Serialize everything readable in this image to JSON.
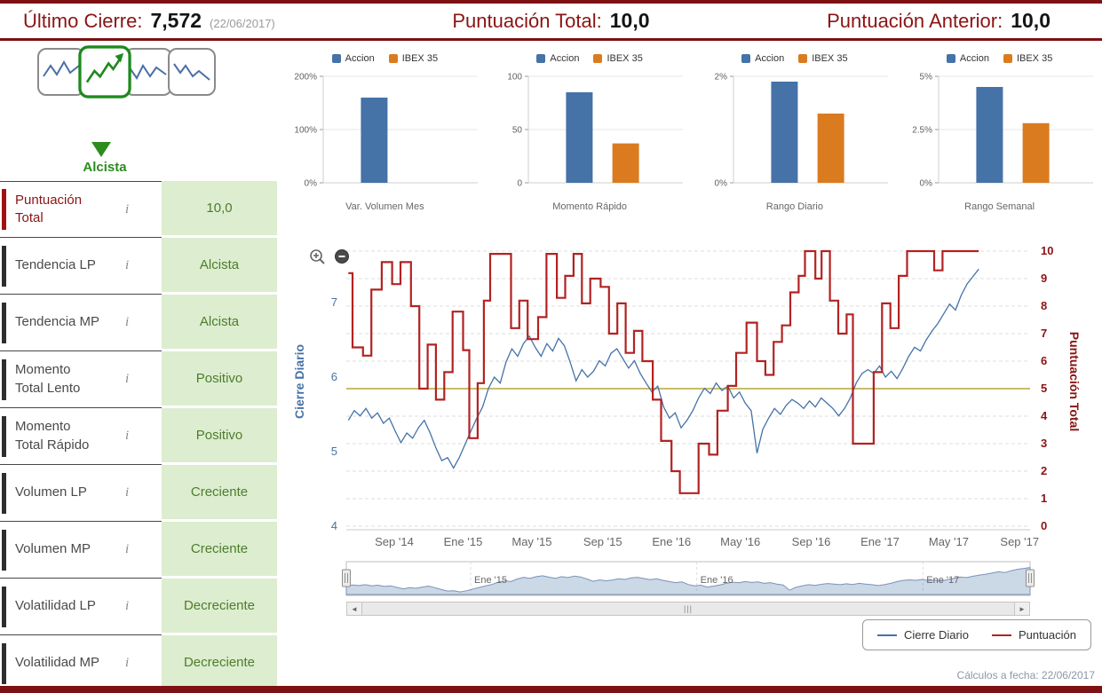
{
  "header": {
    "last_close_label": "Último Cierre:",
    "last_close_value": "7,572",
    "last_close_date": "(22/06/2017)",
    "total_score_label": "Puntuación Total:",
    "total_score_value": "10,0",
    "prev_score_label": "Puntuación Anterior:",
    "prev_score_value": "10,0"
  },
  "sidebar": {
    "trend_label": "Alcista",
    "rows": [
      {
        "label": "Puntuación Total",
        "value": "10,0",
        "accent": true
      },
      {
        "label": "Tendencia LP",
        "value": "Alcista",
        "accent": false
      },
      {
        "label": "Tendencia MP",
        "value": "Alcista",
        "accent": false
      },
      {
        "label": "Momento Total Lento",
        "value": "Positivo",
        "accent": false
      },
      {
        "label": "Momento Total Rápido",
        "value": "Positivo",
        "accent": false
      },
      {
        "label": "Volumen LP",
        "value": "Creciente",
        "accent": false
      },
      {
        "label": "Volumen MP",
        "value": "Creciente",
        "accent": false
      },
      {
        "label": "Volatilidad LP",
        "value": "Decreciente",
        "accent": false
      },
      {
        "label": "Volatilidad MP",
        "value": "Decreciente",
        "accent": false
      }
    ]
  },
  "legend": {
    "series1": "Cierre Diario",
    "series2": "Puntuación"
  },
  "footer": {
    "text": "Cálculos a fecha: 22/06/2017"
  },
  "colors": {
    "accent_maroon": "#7d1113",
    "header_text": "#8b1414",
    "accion_blue": "#4572a7",
    "ibex_orange": "#db7b20",
    "score_red": "#b22222",
    "threshold_khaki": "#c9bc6b",
    "value_green_bg": "#ddedd0",
    "value_green_text": "#4c7d2c",
    "trend_green": "#2c8c1e"
  },
  "chart_data": {
    "bar_charts": [
      {
        "type": "bar",
        "title": "Var. Volumen Mes",
        "legend": [
          "Accion",
          "IBEX 35"
        ],
        "categories": [
          "Accion",
          "IBEX 35"
        ],
        "values": [
          160,
          0
        ],
        "ylim": [
          0,
          200
        ],
        "yticks": [
          {
            "v": 0,
            "label": "0%"
          },
          {
            "v": 100,
            "label": "100%"
          },
          {
            "v": 200,
            "label": "200%"
          }
        ]
      },
      {
        "type": "bar",
        "title": "Momento Rápido",
        "legend": [
          "Accion",
          "IBEX 35"
        ],
        "categories": [
          "Accion",
          "IBEX 35"
        ],
        "values": [
          85,
          37
        ],
        "ylim": [
          0,
          100
        ],
        "yticks": [
          {
            "v": 0,
            "label": "0"
          },
          {
            "v": 50,
            "label": "50"
          },
          {
            "v": 100,
            "label": "100"
          }
        ]
      },
      {
        "type": "bar",
        "title": "Rango Diario",
        "legend": [
          "Accion",
          "IBEX 35"
        ],
        "categories": [
          "Accion",
          "IBEX 35"
        ],
        "values": [
          1.9,
          1.3
        ],
        "ylim": [
          0,
          2
        ],
        "yticks": [
          {
            "v": 0,
            "label": "0%"
          },
          {
            "v": 2,
            "label": "2%"
          }
        ]
      },
      {
        "type": "bar",
        "title": "Rango Semanal",
        "legend": [
          "Accion",
          "IBEX 35"
        ],
        "categories": [
          "Accion",
          "IBEX 35"
        ],
        "values": [
          4.5,
          2.8
        ],
        "ylim": [
          0,
          5
        ],
        "yticks": [
          {
            "v": 0,
            "label": "0%"
          },
          {
            "v": 2.5,
            "label": "2.5%"
          },
          {
            "v": 5,
            "label": "5%"
          }
        ]
      }
    ],
    "main": {
      "type": "line",
      "x_range": [
        2014.44,
        2017.72
      ],
      "x_ticks": [
        {
          "v": 2014.67,
          "label": "Sep '14"
        },
        {
          "v": 2015.0,
          "label": "Ene '15"
        },
        {
          "v": 2015.33,
          "label": "May '15"
        },
        {
          "v": 2015.67,
          "label": "Sep '15"
        },
        {
          "v": 2016.0,
          "label": "Ene '16"
        },
        {
          "v": 2016.33,
          "label": "May '16"
        },
        {
          "v": 2016.67,
          "label": "Sep '16"
        },
        {
          "v": 2017.0,
          "label": "Ene '17"
        },
        {
          "v": 2017.33,
          "label": "May '17"
        },
        {
          "v": 2017.67,
          "label": "Sep '17"
        }
      ],
      "left_axis": {
        "title": "Cierre Diario",
        "ticks": [
          4,
          5,
          6,
          7
        ]
      },
      "right_axis": {
        "title": "Puntuación Total",
        "ticks": [
          0,
          1,
          2,
          3,
          4,
          5,
          6,
          7,
          8,
          9,
          10
        ]
      },
      "threshold_value": 5,
      "series": [
        {
          "name": "Cierre Diario",
          "axis": "left",
          "style": "line",
          "x_start": 2014.45,
          "x_step": 0.028,
          "values": [
            5.42,
            5.55,
            5.48,
            5.58,
            5.45,
            5.52,
            5.38,
            5.45,
            5.28,
            5.12,
            5.25,
            5.18,
            5.32,
            5.42,
            5.25,
            5.05,
            4.88,
            4.92,
            4.78,
            4.92,
            5.1,
            5.28,
            5.45,
            5.6,
            5.85,
            6.0,
            5.92,
            6.2,
            6.38,
            6.28,
            6.45,
            6.55,
            6.4,
            6.28,
            6.45,
            6.35,
            6.52,
            6.42,
            6.2,
            5.95,
            6.1,
            6.0,
            6.08,
            6.22,
            6.15,
            6.32,
            6.38,
            6.25,
            6.12,
            6.22,
            6.05,
            5.92,
            5.8,
            5.88,
            5.6,
            5.45,
            5.52,
            5.32,
            5.42,
            5.55,
            5.72,
            5.85,
            5.78,
            5.92,
            5.82,
            5.88,
            5.72,
            5.8,
            5.65,
            5.55,
            4.98,
            5.3,
            5.45,
            5.58,
            5.5,
            5.62,
            5.7,
            5.65,
            5.58,
            5.68,
            5.6,
            5.72,
            5.65,
            5.58,
            5.48,
            5.58,
            5.72,
            5.92,
            6.05,
            6.1,
            6.05,
            6.15,
            6.0,
            6.08,
            5.98,
            6.12,
            6.28,
            6.4,
            6.35,
            6.5,
            6.62,
            6.72,
            6.85,
            6.98,
            6.9,
            7.1,
            7.25,
            7.35,
            7.45
          ]
        },
        {
          "name": "Puntuación",
          "axis": "right",
          "style": "step",
          "points": [
            [
              2014.45,
              9.2
            ],
            [
              2014.47,
              6.5
            ],
            [
              2014.52,
              6.2
            ],
            [
              2014.56,
              8.6
            ],
            [
              2014.61,
              9.6
            ],
            [
              2014.66,
              8.8
            ],
            [
              2014.7,
              9.6
            ],
            [
              2014.75,
              8.0
            ],
            [
              2014.79,
              5.0
            ],
            [
              2014.83,
              6.6
            ],
            [
              2014.87,
              4.6
            ],
            [
              2014.91,
              5.6
            ],
            [
              2014.95,
              7.8
            ],
            [
              2015.0,
              6.4
            ],
            [
              2015.03,
              3.2
            ],
            [
              2015.07,
              5.2
            ],
            [
              2015.1,
              8.2
            ],
            [
              2015.13,
              9.9
            ],
            [
              2015.23,
              7.2
            ],
            [
              2015.27,
              8.2
            ],
            [
              2015.31,
              6.8
            ],
            [
              2015.36,
              7.6
            ],
            [
              2015.4,
              9.9
            ],
            [
              2015.45,
              8.3
            ],
            [
              2015.49,
              9.1
            ],
            [
              2015.53,
              9.9
            ],
            [
              2015.57,
              8.1
            ],
            [
              2015.61,
              9.0
            ],
            [
              2015.66,
              8.7
            ],
            [
              2015.7,
              7.0
            ],
            [
              2015.74,
              8.1
            ],
            [
              2015.78,
              6.3
            ],
            [
              2015.82,
              7.1
            ],
            [
              2015.86,
              6.0
            ],
            [
              2015.91,
              4.6
            ],
            [
              2015.95,
              3.1
            ],
            [
              2016.0,
              2.0
            ],
            [
              2016.04,
              1.2
            ],
            [
              2016.13,
              3.0
            ],
            [
              2016.18,
              2.6
            ],
            [
              2016.22,
              4.2
            ],
            [
              2016.27,
              5.1
            ],
            [
              2016.31,
              6.3
            ],
            [
              2016.36,
              7.4
            ],
            [
              2016.41,
              6.0
            ],
            [
              2016.45,
              5.5
            ],
            [
              2016.49,
              6.7
            ],
            [
              2016.53,
              7.3
            ],
            [
              2016.57,
              8.5
            ],
            [
              2016.61,
              9.1
            ],
            [
              2016.64,
              10
            ],
            [
              2016.69,
              9.0
            ],
            [
              2016.72,
              10
            ],
            [
              2016.76,
              8.2
            ],
            [
              2016.8,
              7.0
            ],
            [
              2016.84,
              7.7
            ],
            [
              2016.87,
              3.0
            ],
            [
              2016.97,
              5.6
            ],
            [
              2017.01,
              8.1
            ],
            [
              2017.05,
              7.2
            ],
            [
              2017.09,
              9.1
            ],
            [
              2017.13,
              10
            ],
            [
              2017.26,
              9.3
            ],
            [
              2017.3,
              10
            ],
            [
              2017.46,
              10
            ]
          ]
        }
      ]
    },
    "navigator": {
      "labels": [
        {
          "v": 2015.0,
          "label": "Ene '15"
        },
        {
          "v": 2016.0,
          "label": "Ene '16"
        },
        {
          "v": 2017.0,
          "label": "Ene '17"
        }
      ]
    }
  }
}
